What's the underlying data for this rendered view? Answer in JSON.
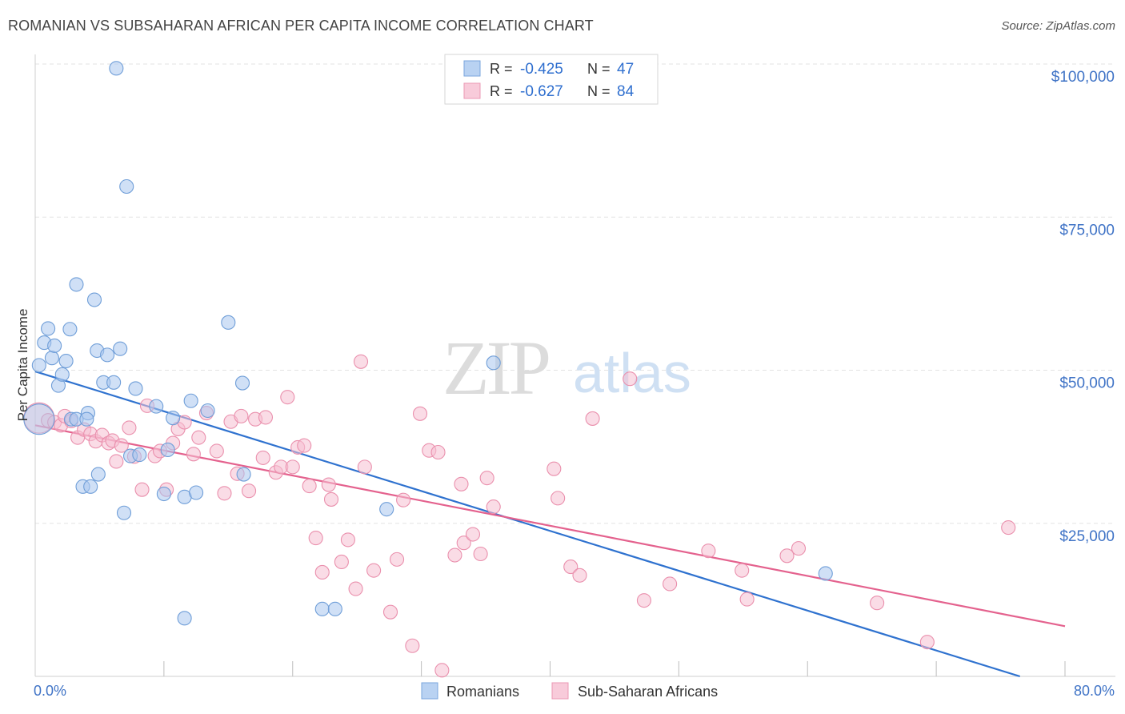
{
  "header": {
    "title": "ROMANIAN VS SUBSAHARAN AFRICAN PER CAPITA INCOME CORRELATION CHART",
    "source": "Source: ZipAtlas.com"
  },
  "watermark": {
    "zip": "ZIP",
    "atlas": "atlas"
  },
  "colors": {
    "blue_fill": "#a9c7ee",
    "blue_stroke": "#6f9ed8",
    "blue_line": "#2f72cf",
    "pink_fill": "#f6bfd1",
    "pink_stroke": "#ea90ad",
    "pink_line": "#e4628e",
    "tick_text": "#3f73c6",
    "grid": "#e3e3e3"
  },
  "legend": {
    "rows": [
      {
        "r_label": "R =",
        "r_value": "-0.425",
        "n_label": "N =",
        "n_value": "47"
      },
      {
        "r_label": "R =",
        "r_value": "-0.627",
        "n_label": "N =",
        "n_value": "84"
      }
    ]
  },
  "bottom_legend": {
    "series1": "Romanians",
    "series2": "Sub-Saharan Africans"
  },
  "chart_data": {
    "type": "scatter",
    "title": "ROMANIAN VS SUBSAHARAN AFRICAN PER CAPITA INCOME CORRELATION CHART",
    "xlabel": "",
    "ylabel": "Per Capita Income",
    "xlim": [
      0,
      80
    ],
    "ylim": [
      0,
      105000
    ],
    "x_tick_labels": [
      "0.0%",
      "80.0%"
    ],
    "y_ticks": [
      {
        "value": 25000,
        "label": "$25,000"
      },
      {
        "value": 50000,
        "label": "$50,000"
      },
      {
        "value": 75000,
        "label": "$75,000"
      },
      {
        "value": 100000,
        "label": "$100,000"
      }
    ],
    "grid": true,
    "series": [
      {
        "name": "Romanians",
        "r": -0.425,
        "n": 47,
        "trend": {
          "x0": 0,
          "y0": 49800,
          "x1": 76.5,
          "y1": 0
        },
        "points": [
          [
            0.3,
            42000,
            "big"
          ],
          [
            0.3,
            50800
          ],
          [
            0.7,
            54500
          ],
          [
            1.0,
            56800
          ],
          [
            1.3,
            52000
          ],
          [
            1.5,
            54000
          ],
          [
            1.8,
            47500
          ],
          [
            2.1,
            49300
          ],
          [
            2.4,
            51500
          ],
          [
            2.7,
            56700
          ],
          [
            2.8,
            42000
          ],
          [
            3.2,
            42000
          ],
          [
            3.2,
            64000
          ],
          [
            3.7,
            31000
          ],
          [
            4.1,
            43000
          ],
          [
            4.3,
            31000
          ],
          [
            4.6,
            61500
          ],
          [
            4.8,
            53200
          ],
          [
            4.9,
            33000
          ],
          [
            5.3,
            48000
          ],
          [
            5.6,
            52500
          ],
          [
            6.1,
            48000
          ],
          [
            6.3,
            99300
          ],
          [
            6.6,
            53500
          ],
          [
            6.9,
            26700
          ],
          [
            7.1,
            80000
          ],
          [
            7.4,
            36000
          ],
          [
            7.8,
            47000
          ],
          [
            8.1,
            36200
          ],
          [
            9.4,
            44100
          ],
          [
            10.0,
            29800
          ],
          [
            10.3,
            37000
          ],
          [
            10.7,
            42200
          ],
          [
            11.6,
            9500
          ],
          [
            11.6,
            29300
          ],
          [
            12.1,
            45000
          ],
          [
            12.5,
            30000
          ],
          [
            13.4,
            43400
          ],
          [
            15.0,
            57800
          ],
          [
            16.2,
            33000
          ],
          [
            16.1,
            47900
          ],
          [
            22.3,
            11000
          ],
          [
            23.3,
            11000
          ],
          [
            27.3,
            27300
          ],
          [
            35.6,
            51200
          ],
          [
            61.4,
            16800
          ],
          [
            4.0,
            42000
          ]
        ]
      },
      {
        "name": "Sub-Saharan Africans",
        "r": -0.627,
        "n": 84,
        "trend": {
          "x0": 0,
          "y0": 41000,
          "x1": 80,
          "y1": 8200
        },
        "points": [
          [
            0.3,
            42200,
            "big"
          ],
          [
            1.0,
            41800
          ],
          [
            1.5,
            41500
          ],
          [
            2.0,
            41000
          ],
          [
            2.3,
            42500
          ],
          [
            2.8,
            41700
          ],
          [
            3.3,
            39000
          ],
          [
            3.8,
            40300
          ],
          [
            4.3,
            39600
          ],
          [
            4.7,
            38400
          ],
          [
            5.2,
            39400
          ],
          [
            5.7,
            38100
          ],
          [
            6.0,
            38500
          ],
          [
            6.3,
            35100
          ],
          [
            6.7,
            37700
          ],
          [
            7.3,
            40600
          ],
          [
            7.7,
            35900
          ],
          [
            8.3,
            30500
          ],
          [
            8.7,
            44200
          ],
          [
            9.3,
            36000
          ],
          [
            9.7,
            36800
          ],
          [
            10.2,
            30500
          ],
          [
            10.7,
            38100
          ],
          [
            11.1,
            40400
          ],
          [
            11.6,
            41500
          ],
          [
            12.3,
            36300
          ],
          [
            12.7,
            39000
          ],
          [
            13.3,
            43000
          ],
          [
            14.1,
            36800
          ],
          [
            14.7,
            29900
          ],
          [
            15.2,
            41600
          ],
          [
            15.7,
            33100
          ],
          [
            16.0,
            42500
          ],
          [
            16.6,
            30300
          ],
          [
            17.1,
            42000
          ],
          [
            17.7,
            35700
          ],
          [
            17.9,
            42300
          ],
          [
            18.7,
            33300
          ],
          [
            19.1,
            34200
          ],
          [
            19.6,
            45600
          ],
          [
            20.0,
            34200
          ],
          [
            20.4,
            37400
          ],
          [
            20.9,
            37700
          ],
          [
            21.3,
            31100
          ],
          [
            21.8,
            22600
          ],
          [
            22.3,
            17000
          ],
          [
            22.8,
            31300
          ],
          [
            23.0,
            28900
          ],
          [
            23.8,
            18700
          ],
          [
            24.3,
            22300
          ],
          [
            24.9,
            14300
          ],
          [
            25.3,
            51400
          ],
          [
            25.6,
            34200
          ],
          [
            26.3,
            17300
          ],
          [
            27.6,
            10500
          ],
          [
            28.1,
            19100
          ],
          [
            28.6,
            28800
          ],
          [
            29.3,
            5000
          ],
          [
            29.9,
            42900
          ],
          [
            30.6,
            36900
          ],
          [
            31.3,
            36600
          ],
          [
            31.6,
            1000
          ],
          [
            32.6,
            19800
          ],
          [
            33.1,
            31400
          ],
          [
            33.3,
            21800
          ],
          [
            34.0,
            23200
          ],
          [
            34.6,
            20000
          ],
          [
            35.1,
            32400
          ],
          [
            35.6,
            27700
          ],
          [
            40.3,
            33900
          ],
          [
            40.6,
            29100
          ],
          [
            41.6,
            17900
          ],
          [
            42.3,
            16500
          ],
          [
            43.3,
            42100
          ],
          [
            46.2,
            48600
          ],
          [
            47.3,
            12400
          ],
          [
            49.3,
            15100
          ],
          [
            52.3,
            20500
          ],
          [
            54.9,
            17300
          ],
          [
            55.3,
            12600
          ],
          [
            58.4,
            19700
          ],
          [
            59.3,
            20900
          ],
          [
            65.4,
            12000
          ],
          [
            69.3,
            5600
          ],
          [
            75.6,
            24300
          ]
        ]
      }
    ]
  }
}
